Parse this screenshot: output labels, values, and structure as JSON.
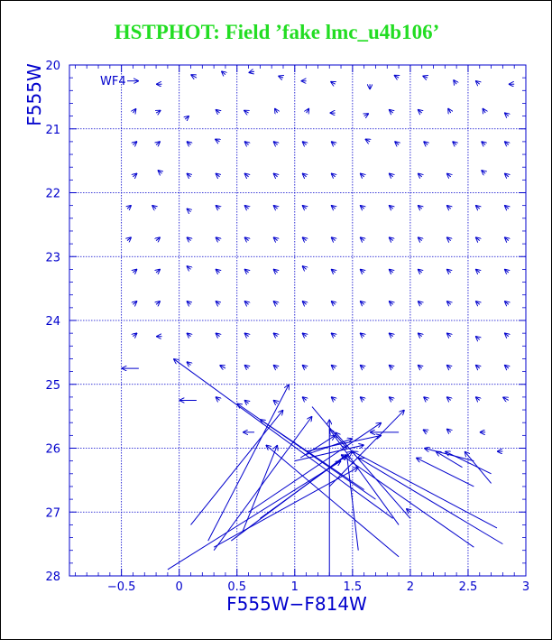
{
  "title": "HSTPHOT: Field ’fake lmc_u4b106’",
  "colors": {
    "title": "#22dd22",
    "axes": "#0000cc",
    "vectors": "#0000cc",
    "background": "#ffffff"
  },
  "chart_data": {
    "type": "quiver",
    "panel_label": "WF4",
    "xlabel": "F555W−F814W",
    "ylabel": "F555W",
    "xlim": [
      -0.95,
      3.0
    ],
    "ylim": [
      28.0,
      20.0
    ],
    "y_inverted": true,
    "x_ticks": [
      "−0.5",
      "0",
      "0.5",
      "1",
      "1.5",
      "2",
      "2.5",
      "3"
    ],
    "x_tick_values": [
      -0.5,
      0,
      0.5,
      1,
      1.5,
      2,
      2.5,
      3
    ],
    "y_ticks": [
      "20",
      "21",
      "22",
      "23",
      "24",
      "25",
      "26",
      "27",
      "28"
    ],
    "y_tick_values": [
      20,
      21,
      22,
      23,
      24,
      25,
      26,
      27,
      28
    ],
    "grid": true,
    "grid_style": "dotted",
    "grid_x": [
      -0.5,
      0,
      0.5,
      1,
      1.5,
      2,
      2.5
    ],
    "grid_y": [
      21,
      22,
      23,
      24,
      25,
      26,
      27
    ],
    "vector_note": "each arrow points from recovered (color, magnitude) to input value",
    "vectors": [
      [
        -0.45,
        20.25,
        -0.35,
        20.25
      ],
      [
        -0.15,
        20.3,
        -0.2,
        20.3
      ],
      [
        0.15,
        20.2,
        0.1,
        20.15
      ],
      [
        0.4,
        20.15,
        0.38,
        20.12
      ],
      [
        0.65,
        20.1,
        0.6,
        20.12
      ],
      [
        0.9,
        20.2,
        0.87,
        20.18
      ],
      [
        1.1,
        20.25,
        1.1,
        20.25
      ],
      [
        1.35,
        20.3,
        1.33,
        20.28
      ],
      [
        1.65,
        20.3,
        1.65,
        20.33
      ],
      [
        1.9,
        20.2,
        1.87,
        20.17
      ],
      [
        2.15,
        20.2,
        2.12,
        20.18
      ],
      [
        2.4,
        20.3,
        2.38,
        20.25
      ],
      [
        2.6,
        20.3,
        2.58,
        20.27
      ],
      [
        2.9,
        20.3,
        2.85,
        20.3
      ],
      [
        -0.4,
        20.75,
        -0.38,
        20.7
      ],
      [
        -0.2,
        20.75,
        -0.18,
        20.73
      ],
      [
        0.05,
        20.85,
        0.07,
        20.82
      ],
      [
        0.35,
        20.75,
        0.33,
        20.72
      ],
      [
        0.6,
        20.75,
        0.58,
        20.73
      ],
      [
        0.85,
        20.75,
        0.84,
        20.72
      ],
      [
        1.1,
        20.75,
        1.11,
        20.72
      ],
      [
        1.35,
        20.75,
        1.35,
        20.75
      ],
      [
        1.6,
        20.8,
        1.62,
        20.78
      ],
      [
        1.85,
        20.75,
        1.83,
        20.72
      ],
      [
        2.1,
        20.75,
        2.08,
        20.72
      ],
      [
        2.35,
        20.75,
        2.34,
        20.72
      ],
      [
        2.65,
        20.75,
        2.64,
        20.72
      ],
      [
        2.85,
        20.8,
        2.83,
        20.77
      ],
      [
        -0.4,
        21.25,
        -0.38,
        21.22
      ],
      [
        -0.2,
        21.25,
        -0.18,
        21.22
      ],
      [
        0.1,
        21.25,
        0.08,
        21.22
      ],
      [
        0.35,
        21.2,
        0.33,
        21.18
      ],
      [
        0.6,
        21.25,
        0.58,
        21.22
      ],
      [
        0.85,
        21.25,
        0.83,
        21.22
      ],
      [
        1.1,
        21.25,
        1.08,
        21.22
      ],
      [
        1.35,
        21.25,
        1.33,
        21.22
      ],
      [
        1.65,
        21.2,
        1.63,
        21.18
      ],
      [
        1.9,
        21.25,
        1.88,
        21.22
      ],
      [
        2.15,
        21.25,
        2.13,
        21.22
      ],
      [
        2.4,
        21.25,
        2.38,
        21.22
      ],
      [
        2.65,
        21.25,
        2.63,
        21.22
      ],
      [
        2.85,
        21.25,
        2.83,
        21.22
      ],
      [
        -0.4,
        21.75,
        -0.38,
        21.72
      ],
      [
        -0.15,
        21.7,
        -0.17,
        21.67
      ],
      [
        0.1,
        21.75,
        0.08,
        21.72
      ],
      [
        0.35,
        21.75,
        0.33,
        21.72
      ],
      [
        0.6,
        21.75,
        0.58,
        21.72
      ],
      [
        0.85,
        21.75,
        0.83,
        21.72
      ],
      [
        1.1,
        21.75,
        1.08,
        21.72
      ],
      [
        1.35,
        21.75,
        1.33,
        21.72
      ],
      [
        1.6,
        21.75,
        1.58,
        21.72
      ],
      [
        1.85,
        21.75,
        1.83,
        21.72
      ],
      [
        2.1,
        21.75,
        2.08,
        21.72
      ],
      [
        2.35,
        21.75,
        2.33,
        21.72
      ],
      [
        2.65,
        21.7,
        2.63,
        21.67
      ],
      [
        2.85,
        21.75,
        2.83,
        21.72
      ],
      [
        -0.45,
        22.25,
        -0.43,
        22.22
      ],
      [
        -0.2,
        22.25,
        -0.22,
        22.22
      ],
      [
        0.1,
        22.3,
        0.08,
        22.27
      ],
      [
        0.35,
        22.25,
        0.33,
        22.22
      ],
      [
        0.6,
        22.25,
        0.58,
        22.22
      ],
      [
        0.85,
        22.25,
        0.83,
        22.22
      ],
      [
        1.1,
        22.25,
        1.08,
        22.22
      ],
      [
        1.35,
        22.25,
        1.33,
        22.22
      ],
      [
        1.6,
        22.25,
        1.58,
        22.22
      ],
      [
        1.85,
        22.25,
        1.83,
        22.22
      ],
      [
        2.1,
        22.25,
        2.08,
        22.22
      ],
      [
        2.35,
        22.25,
        2.33,
        22.22
      ],
      [
        2.6,
        22.25,
        2.58,
        22.22
      ],
      [
        2.85,
        22.25,
        2.83,
        22.22
      ],
      [
        -0.45,
        22.75,
        -0.43,
        22.72
      ],
      [
        -0.2,
        22.75,
        -0.18,
        22.72
      ],
      [
        0.1,
        22.75,
        0.08,
        22.72
      ],
      [
        0.35,
        22.75,
        0.33,
        22.72
      ],
      [
        0.6,
        22.75,
        0.58,
        22.72
      ],
      [
        0.85,
        22.75,
        0.83,
        22.72
      ],
      [
        1.1,
        22.75,
        1.08,
        22.72
      ],
      [
        1.35,
        22.75,
        1.33,
        22.72
      ],
      [
        1.6,
        22.75,
        1.58,
        22.72
      ],
      [
        1.85,
        22.75,
        1.83,
        22.72
      ],
      [
        2.1,
        22.75,
        2.08,
        22.72
      ],
      [
        2.35,
        22.75,
        2.33,
        22.72
      ],
      [
        2.6,
        22.75,
        2.58,
        22.72
      ],
      [
        2.85,
        22.75,
        2.83,
        22.72
      ],
      [
        -0.4,
        23.25,
        -0.38,
        23.22
      ],
      [
        -0.2,
        23.25,
        -0.18,
        23.22
      ],
      [
        0.1,
        23.2,
        0.08,
        23.17
      ],
      [
        0.35,
        23.25,
        0.33,
        23.22
      ],
      [
        0.6,
        23.25,
        0.58,
        23.22
      ],
      [
        0.85,
        23.25,
        0.83,
        23.22
      ],
      [
        1.1,
        23.2,
        1.08,
        23.17
      ],
      [
        1.35,
        23.25,
        1.33,
        23.22
      ],
      [
        1.6,
        23.25,
        1.58,
        23.22
      ],
      [
        1.85,
        23.25,
        1.83,
        23.22
      ],
      [
        2.1,
        23.25,
        2.08,
        23.22
      ],
      [
        2.35,
        23.25,
        2.33,
        23.22
      ],
      [
        2.6,
        23.25,
        2.58,
        23.22
      ],
      [
        2.85,
        23.25,
        2.83,
        23.22
      ],
      [
        -0.4,
        23.75,
        -0.38,
        23.72
      ],
      [
        -0.2,
        23.75,
        -0.18,
        23.72
      ],
      [
        0.1,
        23.75,
        0.08,
        23.72
      ],
      [
        0.35,
        23.75,
        0.33,
        23.72
      ],
      [
        0.6,
        23.75,
        0.58,
        23.72
      ],
      [
        0.85,
        23.75,
        0.83,
        23.72
      ],
      [
        1.1,
        23.75,
        1.08,
        23.72
      ],
      [
        1.35,
        23.75,
        1.33,
        23.72
      ],
      [
        1.6,
        23.75,
        1.58,
        23.72
      ],
      [
        1.85,
        23.75,
        1.83,
        23.72
      ],
      [
        2.1,
        23.75,
        2.08,
        23.72
      ],
      [
        2.35,
        23.75,
        2.33,
        23.72
      ],
      [
        2.6,
        23.75,
        2.58,
        23.72
      ],
      [
        2.85,
        23.75,
        2.83,
        23.72
      ],
      [
        -0.4,
        24.25,
        -0.38,
        24.22
      ],
      [
        -0.15,
        24.25,
        -0.2,
        24.25
      ],
      [
        0.1,
        24.25,
        0.08,
        24.22
      ],
      [
        0.35,
        24.25,
        0.33,
        24.22
      ],
      [
        0.6,
        24.25,
        0.58,
        24.22
      ],
      [
        0.85,
        24.25,
        0.83,
        24.22
      ],
      [
        1.1,
        24.25,
        1.08,
        24.22
      ],
      [
        1.35,
        24.25,
        1.33,
        24.22
      ],
      [
        1.6,
        24.25,
        1.58,
        24.22
      ],
      [
        1.85,
        24.25,
        1.83,
        24.22
      ],
      [
        2.1,
        24.25,
        2.08,
        24.22
      ],
      [
        2.35,
        24.25,
        2.33,
        24.22
      ],
      [
        2.6,
        24.3,
        2.58,
        24.27
      ],
      [
        2.85,
        24.25,
        2.83,
        24.22
      ],
      [
        -0.35,
        24.75,
        -0.5,
        24.75
      ],
      [
        0.1,
        24.7,
        0.08,
        24.67
      ],
      [
        0.4,
        24.75,
        0.35,
        24.7
      ],
      [
        0.6,
        24.75,
        0.58,
        24.72
      ],
      [
        0.85,
        24.75,
        0.83,
        24.72
      ],
      [
        1.1,
        24.75,
        1.08,
        24.72
      ],
      [
        1.35,
        24.75,
        1.33,
        24.72
      ],
      [
        1.6,
        24.75,
        1.58,
        24.72
      ],
      [
        1.85,
        24.75,
        1.83,
        24.72
      ],
      [
        2.1,
        24.75,
        2.08,
        24.72
      ],
      [
        2.35,
        24.75,
        2.33,
        24.72
      ],
      [
        2.6,
        24.75,
        2.58,
        24.72
      ],
      [
        2.85,
        24.75,
        2.83,
        24.72
      ],
      [
        0.15,
        25.25,
        0.0,
        25.25
      ],
      [
        0.35,
        25.25,
        0.33,
        25.22
      ],
      [
        0.6,
        25.3,
        0.58,
        25.27
      ],
      [
        0.85,
        25.3,
        0.83,
        25.27
      ],
      [
        1.1,
        25.25,
        1.08,
        25.22
      ],
      [
        1.35,
        25.25,
        1.33,
        25.22
      ],
      [
        1.6,
        25.25,
        1.58,
        25.22
      ],
      [
        1.85,
        25.25,
        1.83,
        25.22
      ],
      [
        2.15,
        25.25,
        2.13,
        25.22
      ],
      [
        2.35,
        25.25,
        2.33,
        25.22
      ],
      [
        2.6,
        25.25,
        2.58,
        25.22
      ],
      [
        2.85,
        25.25,
        2.8,
        25.2
      ],
      [
        0.65,
        25.75,
        0.55,
        25.75
      ],
      [
        2.15,
        25.75,
        2.12,
        25.72
      ],
      [
        2.35,
        25.75,
        2.33,
        25.72
      ],
      [
        2.65,
        25.75,
        2.6,
        25.75
      ],
      [
        2.8,
        26.05,
        2.75,
        26.05
      ],
      [
        2.55,
        26.2,
        2.12,
        26.0
      ],
      [
        2.45,
        26.3,
        2.22,
        26.05
      ],
      [
        2.7,
        26.4,
        2.3,
        26.05
      ],
      [
        2.7,
        26.55,
        2.47,
        26.05
      ],
      [
        2.55,
        26.6,
        2.05,
        26.15
      ],
      [
        2.0,
        27.0,
        1.98,
        26.97
      ],
      [
        0.1,
        27.2,
        0.9,
        25.4
      ],
      [
        0.25,
        27.45,
        0.95,
        25.0
      ],
      [
        0.3,
        27.6,
        1.15,
        25.5
      ],
      [
        0.55,
        27.3,
        0.85,
        25.95
      ],
      [
        -0.1,
        27.9,
        1.4,
        26.2
      ],
      [
        1.3,
        28.0,
        1.3,
        25.55
      ],
      [
        0.45,
        27.45,
        1.45,
        26.1
      ],
      [
        0.7,
        27.1,
        1.5,
        26.05
      ],
      [
        0.3,
        27.55,
        1.55,
        26.3
      ],
      [
        0.6,
        27.0,
        1.75,
        25.6
      ],
      [
        1.0,
        26.2,
        1.6,
        25.95
      ],
      [
        1.9,
        25.75,
        1.65,
        25.75
      ],
      [
        1.3,
        26.6,
        1.95,
        25.4
      ],
      [
        2.75,
        27.25,
        1.5,
        26.05
      ],
      [
        2.8,
        27.5,
        1.55,
        26.15
      ],
      [
        2.55,
        27.55,
        1.4,
        26.1
      ],
      [
        2.0,
        27.1,
        1.35,
        25.75
      ],
      [
        1.9,
        27.2,
        1.3,
        25.7
      ],
      [
        1.55,
        27.6,
        1.45,
        26.1
      ],
      [
        1.1,
        26.1,
        1.5,
        25.85
      ],
      [
        1.6,
        26.65,
        0.7,
        25.55
      ],
      [
        1.7,
        26.8,
        0.5,
        25.3
      ],
      [
        1.85,
        27.1,
        -0.05,
        24.6
      ],
      [
        1.9,
        27.7,
        0.75,
        25.95
      ],
      [
        1.15,
        25.35,
        1.45,
        26.0
      ],
      [
        1.1,
        26.05,
        1.75,
        25.8
      ],
      [
        1.05,
        26.15,
        1.35,
        25.8
      ]
    ]
  }
}
